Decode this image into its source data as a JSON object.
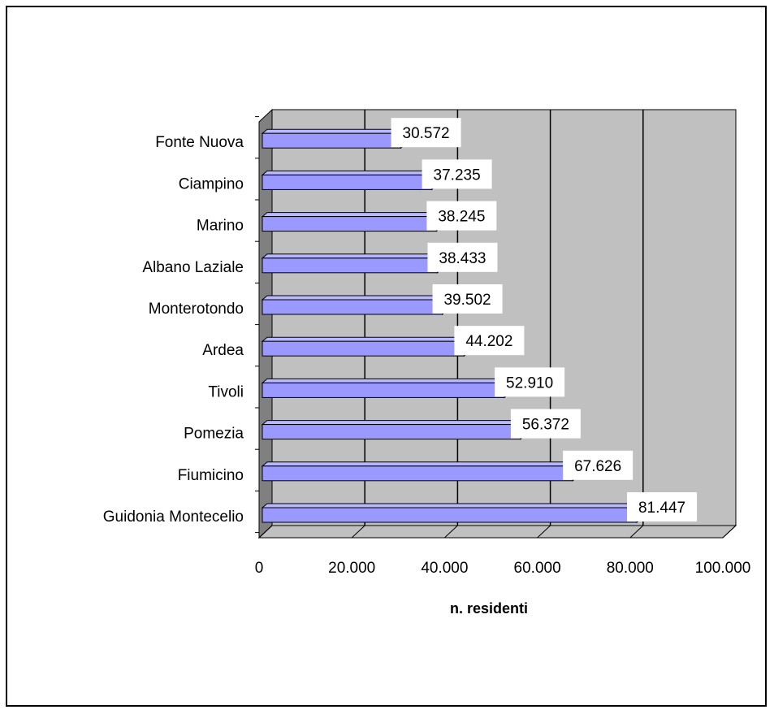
{
  "chart_data": {
    "type": "bar",
    "orientation": "horizontal",
    "style": "3d",
    "title": "",
    "xlabel": "n. residenti",
    "ylabel": "",
    "xlim": [
      0,
      100000
    ],
    "x_tick_labels": [
      "0",
      "20.000",
      "40.000",
      "60.000",
      "80.000",
      "100.000"
    ],
    "categories": [
      "Guidonia Montecelio",
      "Fiumicino",
      "Pomezia",
      "Tivoli",
      "Ardea",
      "Monterotondo",
      "Albano Laziale",
      "Marino",
      "Ciampino",
      "Fonte Nuova"
    ],
    "values": [
      81447,
      67626,
      56372,
      52910,
      44202,
      39502,
      38433,
      38245,
      37235,
      30572
    ],
    "value_labels": [
      "81.447",
      "67.626",
      "56.372",
      "52.910",
      "44.202",
      "39.502",
      "38.433",
      "38.245",
      "37.235",
      "30.572"
    ],
    "grid": true,
    "legend": "none",
    "colors": {
      "bar": "#9999ff",
      "bar_top": "#b8b8ff",
      "bar_end": "#6666cc",
      "wall": "#c0c0c0",
      "floor": "#c0c0c0",
      "side_wall": "#808080",
      "gridline": "#000000"
    }
  }
}
